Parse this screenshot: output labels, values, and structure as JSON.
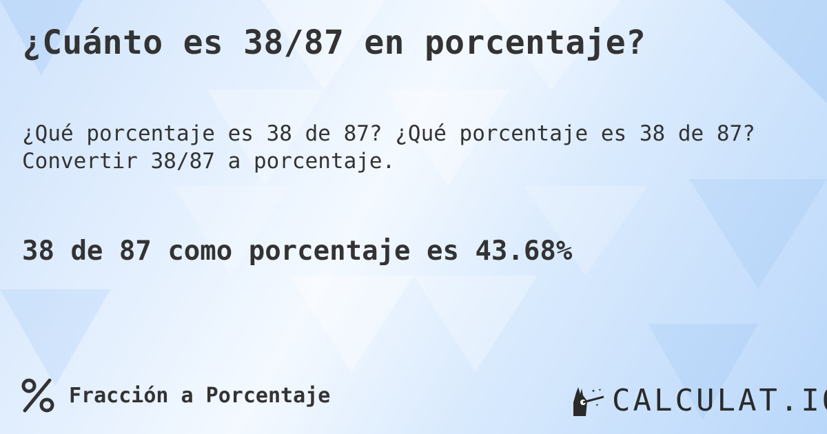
{
  "title": "¿Cuánto es 38/87 en porcentaje?",
  "description": "¿Qué porcentaje es 38 de 87? ¿Qué porcentaje es 38 de 87? Convertir 38/87 a porcentaje.",
  "result": "38 de 87 como porcentaje es 43.68%",
  "footer": {
    "category_icon": "percent-icon",
    "category_label": "Fracción a Porcentaje",
    "logo_text": "CALCULAT.IO",
    "logo_icon": "magic-hand-icon"
  },
  "colors": {
    "text": "#333333",
    "background": "#d9eafd"
  }
}
